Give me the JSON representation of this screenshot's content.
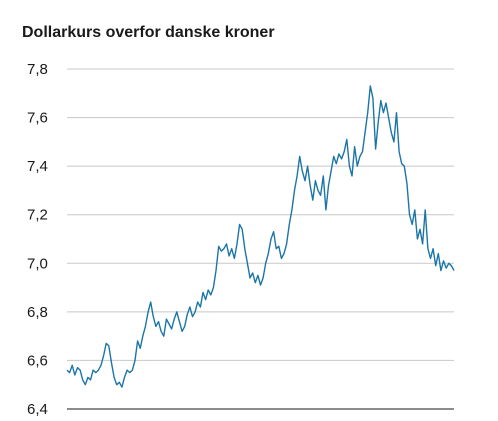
{
  "chart_data": {
    "type": "line",
    "title": "Dollarkurs overfor danske kroner",
    "xlabel": "",
    "ylabel": "",
    "ylim": [
      6.4,
      7.8
    ],
    "yticks": [
      "7,8",
      "7,6",
      "7,4",
      "7,2",
      "7,0",
      "6,8",
      "6,6",
      "6,4"
    ],
    "ytick_values": [
      7.8,
      7.6,
      7.4,
      7.2,
      7.0,
      6.8,
      6.6,
      6.4
    ],
    "grid": true,
    "legend": "none",
    "x_unit": "observation index",
    "series": [
      {
        "color": "#1b75a7",
        "values": [
          6.56,
          6.55,
          6.58,
          6.54,
          6.57,
          6.56,
          6.52,
          6.5,
          6.53,
          6.52,
          6.56,
          6.55,
          6.56,
          6.58,
          6.62,
          6.67,
          6.66,
          6.59,
          6.53,
          6.5,
          6.51,
          6.49,
          6.53,
          6.56,
          6.55,
          6.56,
          6.6,
          6.68,
          6.65,
          6.7,
          6.74,
          6.8,
          6.84,
          6.78,
          6.74,
          6.76,
          6.72,
          6.7,
          6.77,
          6.75,
          6.73,
          6.77,
          6.8,
          6.76,
          6.72,
          6.74,
          6.79,
          6.82,
          6.78,
          6.8,
          6.84,
          6.82,
          6.88,
          6.85,
          6.89,
          6.87,
          6.9,
          6.97,
          7.07,
          7.05,
          7.06,
          7.08,
          7.03,
          7.06,
          7.02,
          7.08,
          7.16,
          7.14,
          7.06,
          7.0,
          6.94,
          6.96,
          6.92,
          6.95,
          6.91,
          6.94,
          7.0,
          7.04,
          7.1,
          7.13,
          7.06,
          7.07,
          7.02,
          7.04,
          7.08,
          7.16,
          7.22,
          7.3,
          7.36,
          7.44,
          7.38,
          7.34,
          7.4,
          7.32,
          7.26,
          7.34,
          7.3,
          7.28,
          7.36,
          7.22,
          7.32,
          7.38,
          7.44,
          7.41,
          7.45,
          7.43,
          7.46,
          7.51,
          7.4,
          7.36,
          7.48,
          7.4,
          7.44,
          7.46,
          7.54,
          7.62,
          7.73,
          7.68,
          7.47,
          7.58,
          7.67,
          7.62,
          7.66,
          7.6,
          7.54,
          7.5,
          7.62,
          7.46,
          7.41,
          7.4,
          7.33,
          7.2,
          7.16,
          7.22,
          7.1,
          7.14,
          7.08,
          7.22,
          7.06,
          7.02,
          7.06,
          6.99,
          7.04,
          6.97,
          7.01,
          6.98,
          7.0,
          6.99,
          6.97
        ]
      }
    ]
  }
}
